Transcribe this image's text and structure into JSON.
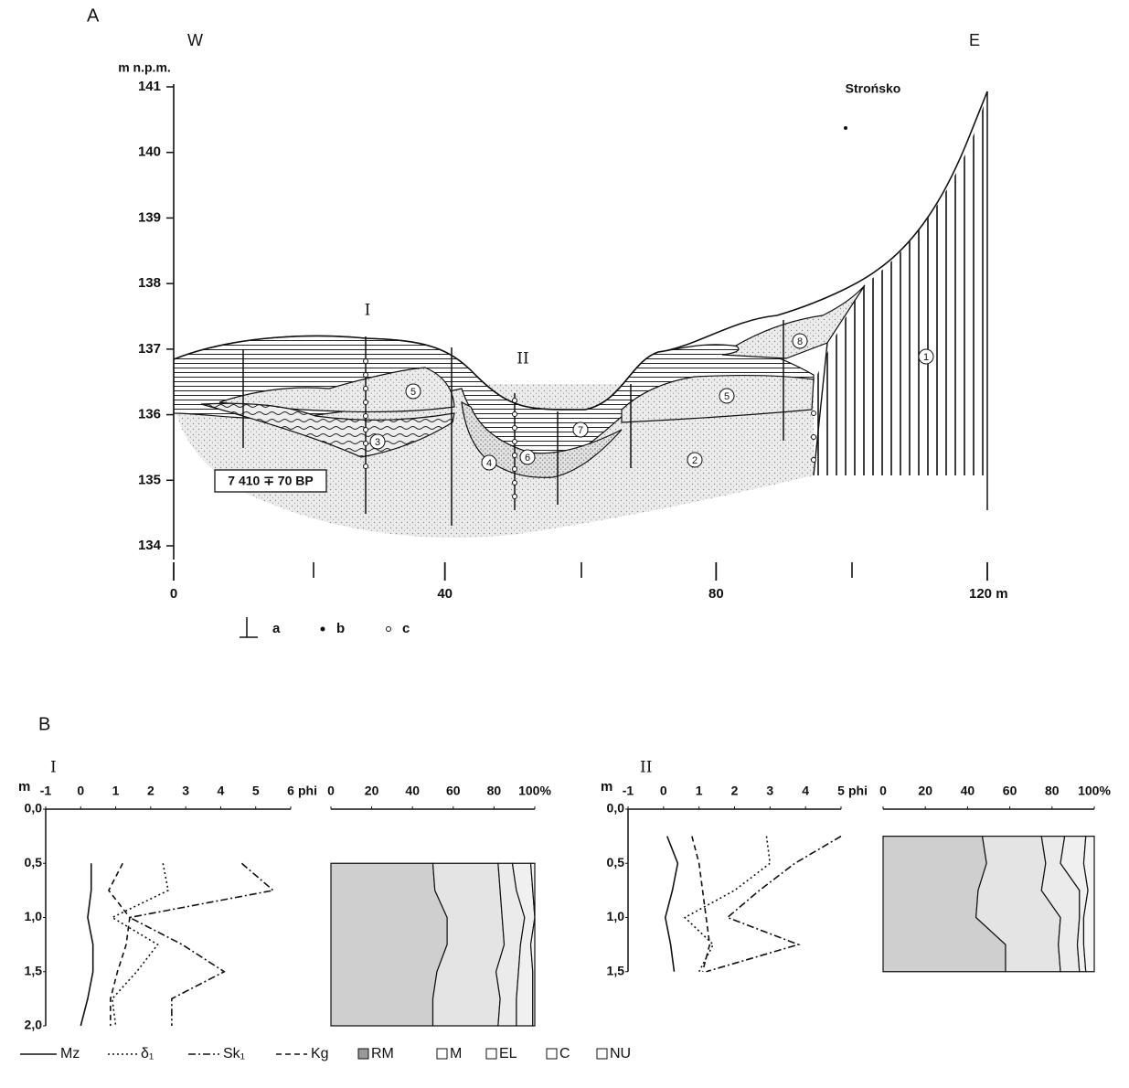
{
  "section_a": {
    "panel_label": "A",
    "west": "W",
    "east": "E",
    "y_axis_title": "m n.p.m.",
    "ylim": [
      134,
      141
    ],
    "yticks": [
      134,
      135,
      136,
      137,
      138,
      139,
      140,
      141
    ],
    "xlim": [
      0,
      120
    ],
    "xticks": [
      0,
      40,
      80,
      {
        "value": 120,
        "label": "120 m"
      }
    ],
    "place": "Strońsko",
    "profiles": [
      "I",
      "II"
    ],
    "units": [
      "1",
      "2",
      "3",
      "4",
      "5",
      "5",
      "6",
      "7",
      "8"
    ],
    "date": "7 410 ∓ 70 BP",
    "legend": [
      "a",
      "b",
      "c"
    ]
  },
  "section_b": {
    "panel_label": "B",
    "series": [
      {
        "name": "Mz"
      },
      {
        "name": "δ₁"
      },
      {
        "name": "Sk₁"
      },
      {
        "name": "Kg"
      }
    ],
    "fractions": [
      {
        "name": "RM"
      },
      {
        "name": "M"
      },
      {
        "name": "EL"
      },
      {
        "name": "C"
      },
      {
        "name": "NU"
      }
    ],
    "profiles": [
      {
        "name": "I",
        "depth_unit": "m",
        "depth_lim": [
          0,
          2
        ],
        "depth_ticks": [
          {
            "value": 0,
            "label": "0,0"
          },
          {
            "value": 0.5,
            "label": "0,5"
          },
          {
            "value": 1,
            "label": "1,0"
          },
          {
            "value": 1.5,
            "label": "1,5"
          },
          {
            "value": 2,
            "label": "2,0"
          }
        ],
        "phi_lim": [
          -1,
          6
        ],
        "phi_ticks": [
          -1,
          0,
          1,
          2,
          3,
          4,
          5,
          6
        ],
        "phi_unit": "phi",
        "pct_lim": [
          0,
          100
        ],
        "pct_ticks": [
          0,
          20,
          40,
          60,
          80,
          {
            "value": 100,
            "label": "100%"
          }
        ],
        "depths": [
          0.5,
          0.75,
          1.0,
          1.25,
          1.5,
          1.75,
          2.0
        ],
        "lines": [
          [
            0.3,
            0.3,
            0.2,
            0.35,
            0.35,
            0.2,
            0.0
          ],
          [
            2.35,
            2.5,
            0.9,
            2.2,
            1.6,
            0.9,
            1.0
          ],
          [
            4.6,
            5.5,
            1.4,
            2.9,
            4.1,
            2.6,
            2.6
          ],
          [
            1.2,
            0.8,
            1.4,
            1.3,
            1.05,
            0.85,
            0.85
          ]
        ],
        "fractions": [
          [
            50,
            51,
            57,
            57,
            52,
            50,
            50
          ],
          [
            32,
            32,
            27,
            28,
            29,
            33,
            32
          ],
          [
            7,
            8,
            11,
            8,
            11,
            8,
            9
          ],
          [
            9,
            8,
            5,
            5,
            7,
            8,
            8
          ],
          [
            2,
            1,
            0,
            2,
            1,
            1,
            1
          ]
        ]
      },
      {
        "name": "II",
        "depth_unit": "m",
        "depth_lim": [
          0,
          1.5
        ],
        "depth_ticks": [
          {
            "value": 0,
            "label": "0,0"
          },
          {
            "value": 0.5,
            "label": "0,5"
          },
          {
            "value": 1,
            "label": "1,0"
          },
          {
            "value": 1.5,
            "label": "1,5"
          }
        ],
        "phi_lim": [
          -1,
          5
        ],
        "phi_ticks": [
          -1,
          0,
          1,
          2,
          3,
          4,
          5
        ],
        "phi_unit": "phi",
        "pct_lim": [
          0,
          100
        ],
        "pct_ticks": [
          0,
          20,
          40,
          60,
          80,
          {
            "value": 100,
            "label": "100%"
          }
        ],
        "depths": [
          0.25,
          0.5,
          0.75,
          1.0,
          1.25,
          1.5
        ],
        "lines": [
          [
            0.1,
            0.4,
            0.25,
            0.05,
            0.2,
            0.3
          ],
          [
            2.9,
            3.0,
            2.0,
            0.6,
            1.4,
            1.0
          ],
          [
            5.0,
            3.7,
            2.7,
            1.8,
            3.8,
            1.2
          ],
          [
            0.8,
            1.0,
            1.1,
            1.2,
            1.3,
            1.1
          ]
        ],
        "fractions": [
          [
            47,
            49,
            45,
            44,
            58,
            58
          ],
          [
            28,
            28,
            30,
            40,
            25,
            26
          ],
          [
            11,
            7,
            18,
            9,
            9,
            9
          ],
          [
            10,
            11,
            4,
            2,
            3,
            3
          ],
          [
            4,
            5,
            3,
            5,
            5,
            4
          ]
        ]
      }
    ]
  }
}
